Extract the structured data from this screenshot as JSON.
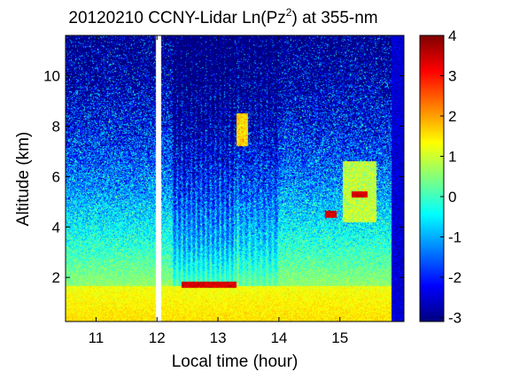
{
  "chart_data": {
    "type": "heatmap",
    "title_main": "20120210 CCNY-Lidar Ln(Pz",
    "title_sup": "2",
    "title_tail": ") at 355-nm",
    "xlabel": "Local time (hour)",
    "ylabel": "Altitude (km)",
    "xlim": [
      10.5,
      16.05
    ],
    "ylim": [
      0.25,
      11.6
    ],
    "xticks": [
      11,
      12,
      13,
      14,
      15
    ],
    "xtick_labels": [
      "11",
      "12",
      "13",
      "14",
      "15"
    ],
    "yticks": [
      2,
      4,
      6,
      8,
      10
    ],
    "ytick_labels": [
      "2",
      "4",
      "6",
      "8",
      "10"
    ],
    "colorbar": {
      "colormap": "jet",
      "clim": [
        -3.1,
        4.0
      ],
      "ticks": [
        4,
        3,
        2,
        1,
        0,
        -1,
        -2,
        -3
      ],
      "tick_labels": [
        "4",
        "3",
        "2",
        "1",
        "0",
        "-1",
        "-2",
        "-3"
      ]
    },
    "features": {
      "boundary_layer_top_km": 1.65,
      "near_surface_value": 1.6,
      "data_gap_hour": 12.02,
      "signal_cutoff_hour": 15.85,
      "cloud_layers": [
        {
          "hour_start": 12.4,
          "hour_end": 13.3,
          "altitude_km": 1.7
        },
        {
          "hour_start": 14.75,
          "hour_end": 14.95,
          "altitude_km": 4.5
        },
        {
          "hour_start": 15.2,
          "hour_end": 15.45,
          "altitude_km": 5.3
        }
      ]
    }
  }
}
